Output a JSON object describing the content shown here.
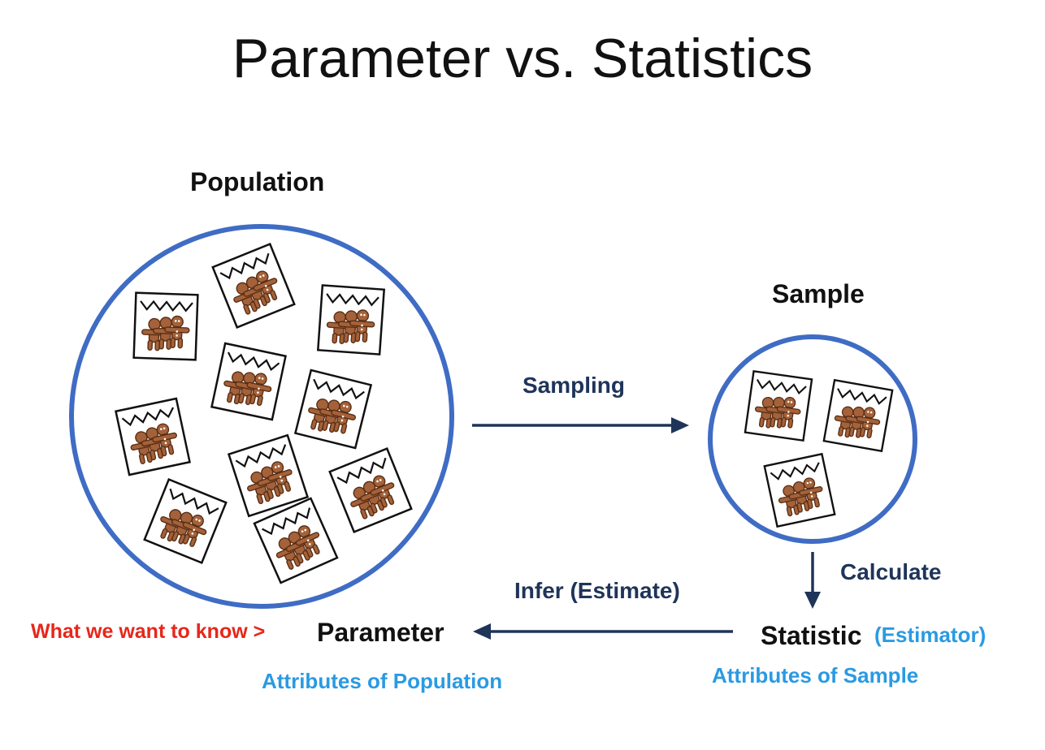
{
  "title": "Parameter vs. Statistics",
  "population": {
    "label": "Population"
  },
  "sample": {
    "label": "Sample"
  },
  "arrows": {
    "sampling": "Sampling",
    "calculate": "Calculate",
    "infer": "Infer (Estimate)"
  },
  "parameter": {
    "prefix": "What we want to know >",
    "label": "Parameter",
    "attributes": "Attributes of Population"
  },
  "statistic": {
    "label": "Statistic",
    "note": "(Estimator)",
    "attributes": "Attributes of Sample"
  },
  "colors": {
    "circle": "#3f6cc4",
    "arrow": "#1f3459",
    "highlight": "#e8261a",
    "accent": "#2a9ae3",
    "cookie": "#a4623a"
  },
  "icons": [
    "gingerbread-cookie-bag-icon"
  ]
}
